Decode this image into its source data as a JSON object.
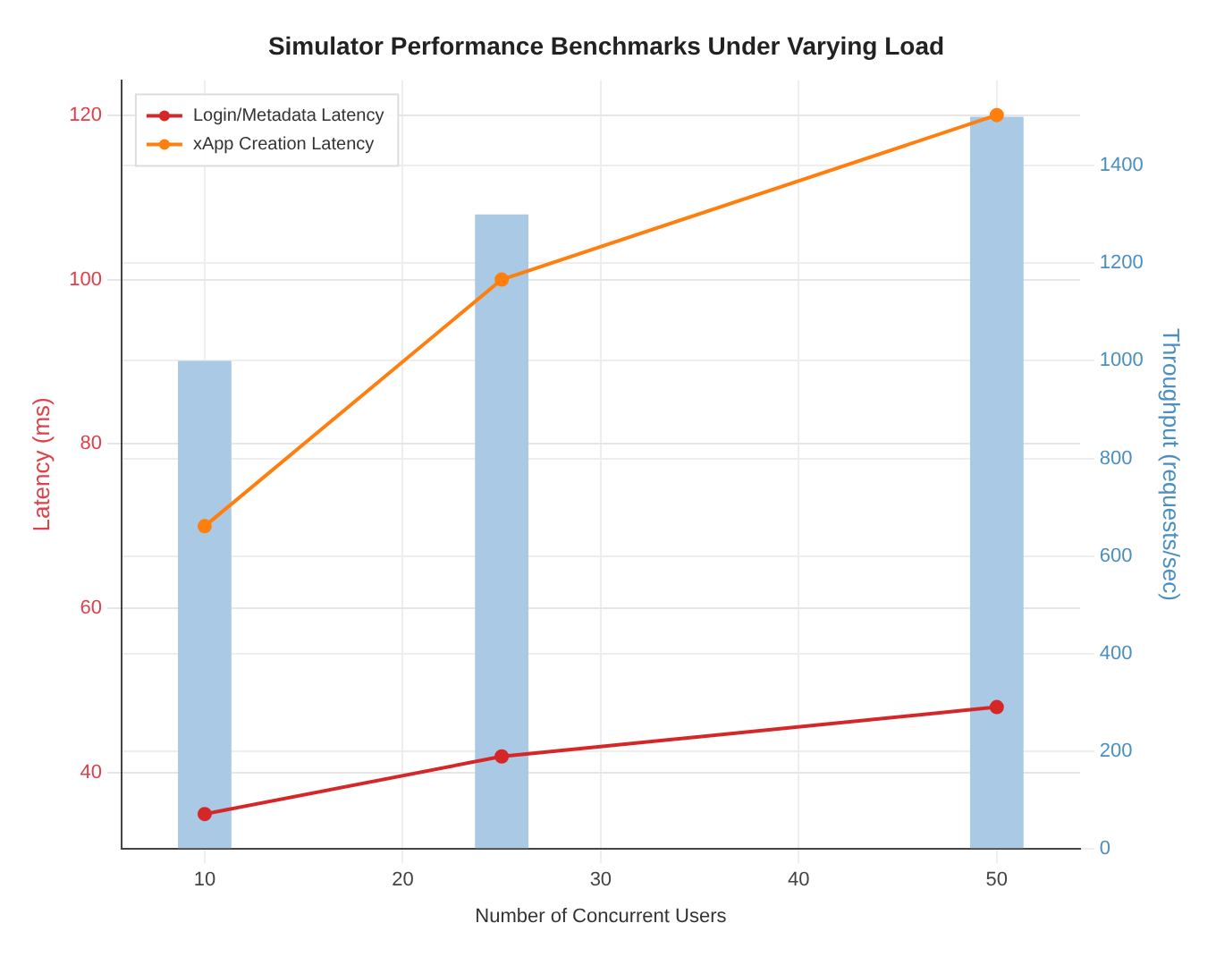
{
  "chart_data": {
    "type": "line",
    "title": "Simulator Performance Benchmarks Under Varying Load",
    "xlabel": "Number of Concurrent Users",
    "ylabel": "Latency (ms)",
    "y2label": "Throughput (requests/sec)",
    "x": [
      10,
      25,
      50
    ],
    "series": [
      {
        "type": "bar",
        "axis": "y2",
        "color": "#a9c9e4",
        "values": [
          1000,
          1300,
          1500
        ]
      },
      {
        "name": "Login/Metadata Latency",
        "color": "#d62728",
        "values": [
          35,
          42,
          48
        ]
      },
      {
        "name": "xApp Creation Latency",
        "color": "#ff7f0e",
        "values": [
          70,
          100,
          120
        ]
      }
    ],
    "xlim": [
      5.8,
      54.2
    ],
    "xticks": [
      10,
      20,
      30,
      40,
      50
    ],
    "ylim": [
      30.75,
      124.25
    ],
    "yticks": [
      40,
      60,
      80,
      100,
      120
    ],
    "y2lim": [
      0,
      1575
    ],
    "y2ticks": [
      0,
      200,
      400,
      600,
      800,
      1000,
      1200,
      1400
    ],
    "grid": true,
    "legend": "top left",
    "marker": "circle",
    "line_style": "solid"
  }
}
